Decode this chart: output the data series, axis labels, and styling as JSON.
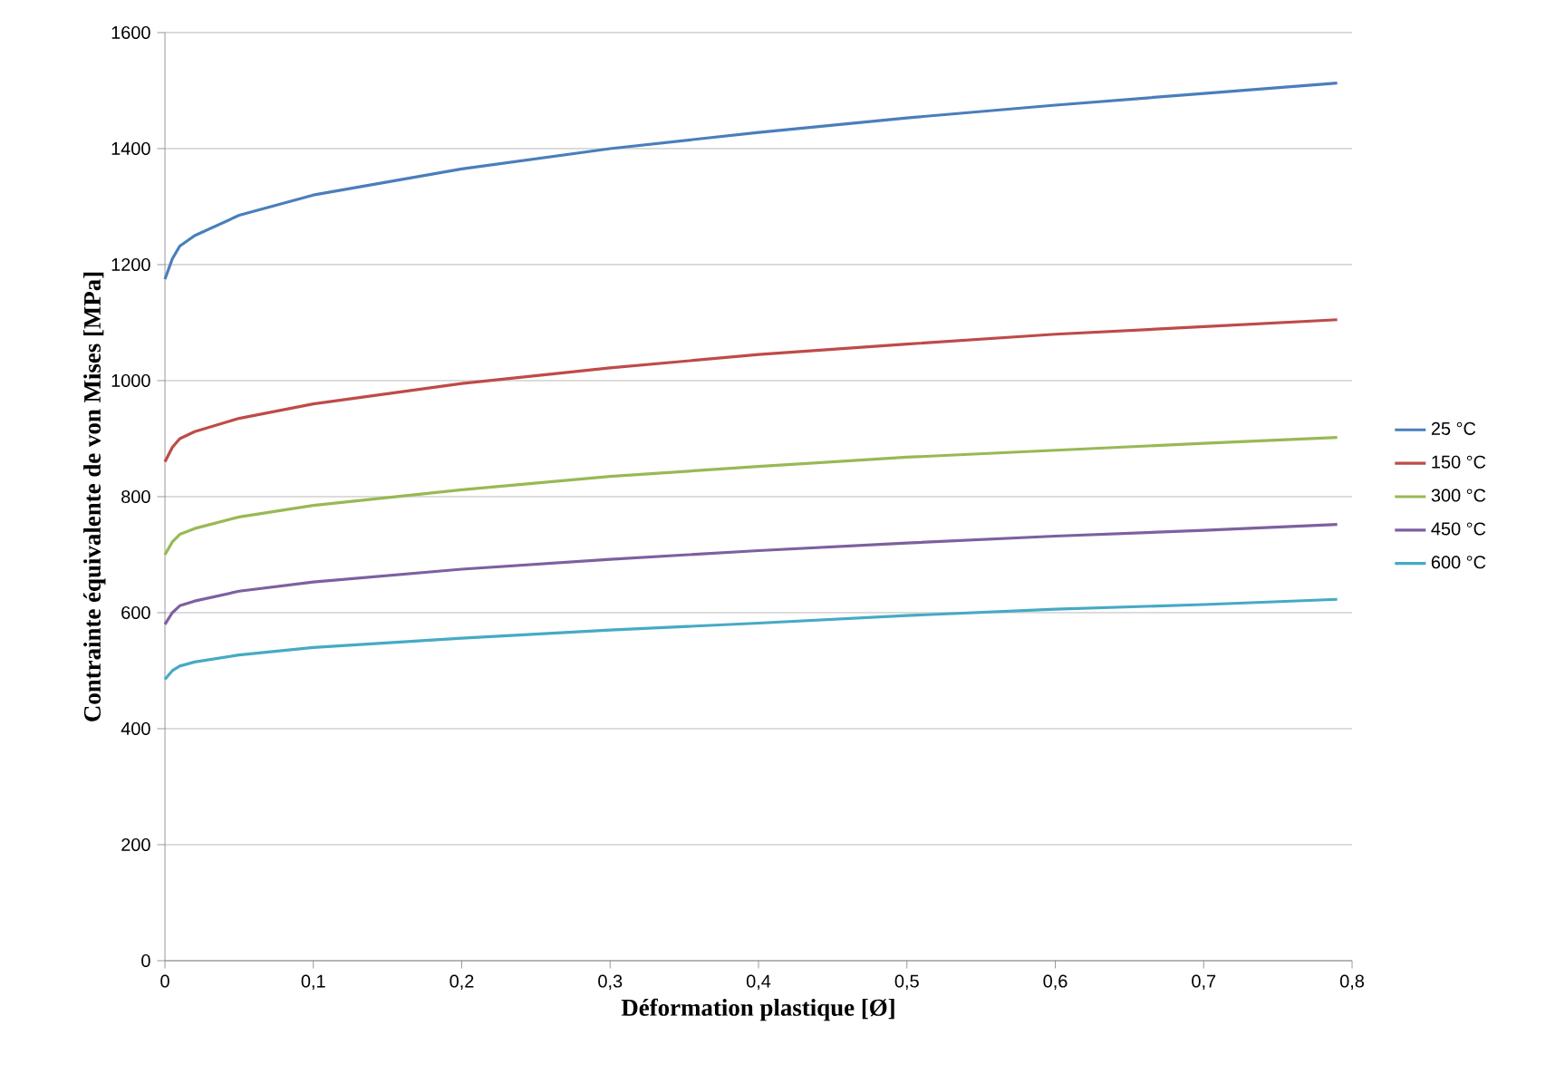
{
  "chart_data": {
    "type": "line",
    "xlabel": "Déformation plastique [Ø]",
    "ylabel": "Contrainte équivalente de von Mises [MPa]",
    "x": [
      0,
      0.005,
      0.01,
      0.02,
      0.05,
      0.1,
      0.2,
      0.3,
      0.4,
      0.5,
      0.6,
      0.7,
      0.79
    ],
    "series": [
      {
        "name": "25 °C",
        "color": "#4a7ebb",
        "values": [
          1175,
          1210,
          1232,
          1250,
          1285,
          1320,
          1365,
          1400,
          1428,
          1453,
          1475,
          1495,
          1513
        ]
      },
      {
        "name": "150 °C",
        "color": "#be4b48",
        "values": [
          860,
          885,
          900,
          912,
          935,
          960,
          995,
          1022,
          1045,
          1063,
          1080,
          1093,
          1105
        ]
      },
      {
        "name": "300 °C",
        "color": "#98b954",
        "values": [
          700,
          722,
          735,
          745,
          765,
          785,
          812,
          835,
          852,
          868,
          880,
          892,
          902
        ]
      },
      {
        "name": "450 °C",
        "color": "#7d60a0",
        "values": [
          580,
          600,
          612,
          620,
          637,
          653,
          675,
          692,
          707,
          720,
          732,
          742,
          752
        ]
      },
      {
        "name": "600 °C",
        "color": "#46aac5",
        "values": [
          485,
          500,
          508,
          515,
          527,
          540,
          556,
          570,
          582,
          595,
          606,
          614,
          623
        ]
      }
    ],
    "xlim": [
      0,
      0.8
    ],
    "xticks": [
      0,
      {
        "value": 0.1,
        "label": "0,1"
      },
      {
        "value": 0.2,
        "label": "0,2"
      },
      {
        "value": 0.3,
        "label": "0,3"
      },
      {
        "value": 0.4,
        "label": "0,4"
      },
      {
        "value": 0.5,
        "label": "0,5"
      },
      {
        "value": 0.6,
        "label": "0,6"
      },
      {
        "value": 0.7,
        "label": "0,7"
      },
      {
        "value": 0.8,
        "label": "0,8"
      }
    ],
    "ylim": [
      0,
      1600
    ],
    "yticks": [
      0,
      200,
      400,
      600,
      800,
      1000,
      1200,
      1400,
      1600
    ],
    "grid": "y",
    "legend": "right",
    "marker": "none",
    "line_style": "solid"
  }
}
